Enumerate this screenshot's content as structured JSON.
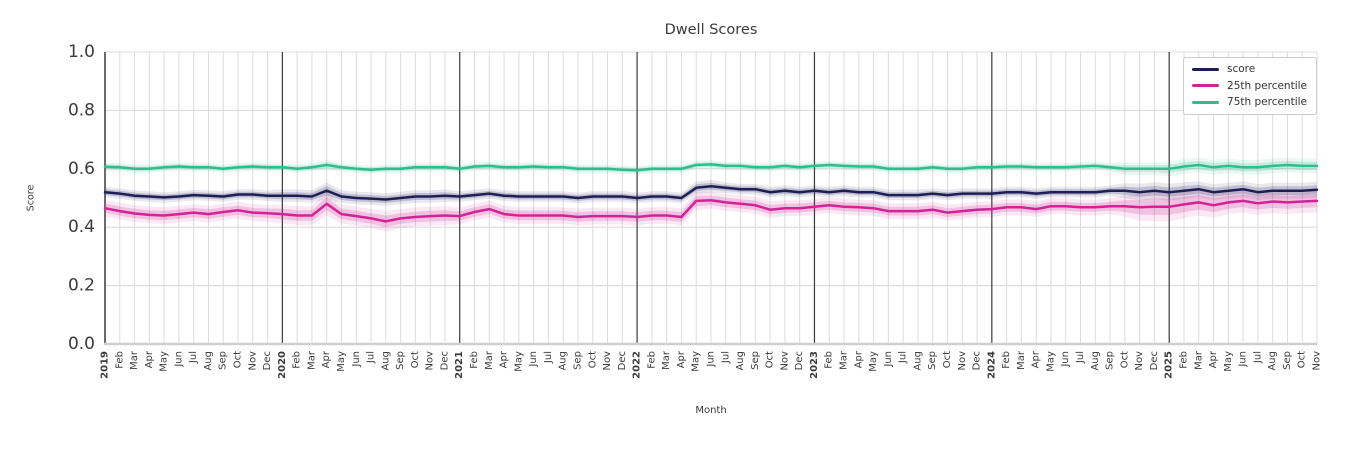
{
  "chart_data": {
    "type": "line",
    "title": "Dwell Scores",
    "xlabel": "Month",
    "ylabel": "Score",
    "ylim": [
      0.0,
      1.0
    ],
    "yticks": [
      0.0,
      0.2,
      0.4,
      0.6,
      0.8,
      1.0
    ],
    "grid": true,
    "legend_position": "upper right",
    "colors": {
      "grid_light": "#dcdcdc",
      "grid_year": "#3a3a3a",
      "axis_spine": "#cfcfcf",
      "tick_text": "#3b3b3b"
    },
    "year_line_indices": [
      12,
      24,
      36,
      48,
      60,
      72
    ],
    "x_labels": [
      "2019",
      "Feb",
      "Mar",
      "Apr",
      "May",
      "Jun",
      "Jul",
      "Aug",
      "Sep",
      "Oct",
      "Nov",
      "Dec",
      "2020",
      "Feb",
      "Mar",
      "Apr",
      "May",
      "Jun",
      "Jul",
      "Aug",
      "Sep",
      "Oct",
      "Nov",
      "Dec",
      "2021",
      "Feb",
      "Mar",
      "Apr",
      "May",
      "Jun",
      "Jul",
      "Aug",
      "Sep",
      "Oct",
      "Nov",
      "Dec",
      "2022",
      "Feb",
      "Mar",
      "Apr",
      "May",
      "Jun",
      "Jul",
      "Aug",
      "Sep",
      "Oct",
      "Nov",
      "Dec",
      "2023",
      "Feb",
      "Mar",
      "Apr",
      "May",
      "Jun",
      "Jul",
      "Aug",
      "Sep",
      "Oct",
      "Nov",
      "Dec",
      "2024",
      "Feb",
      "Mar",
      "Apr",
      "May",
      "Jun",
      "Jul",
      "Aug",
      "Sep",
      "Oct",
      "Nov",
      "Dec",
      "2025",
      "Feb",
      "Mar",
      "Apr",
      "May",
      "Jun",
      "Jul",
      "Aug",
      "Sep",
      "Oct",
      "Nov"
    ],
    "series": [
      {
        "name": "score",
        "color": "#1f1d56",
        "values": [
          0.52,
          0.515,
          0.508,
          0.505,
          0.502,
          0.505,
          0.51,
          0.508,
          0.505,
          0.512,
          0.512,
          0.508,
          0.508,
          0.508,
          0.505,
          0.525,
          0.505,
          0.5,
          0.498,
          0.495,
          0.5,
          0.505,
          0.505,
          0.508,
          0.505,
          0.51,
          0.515,
          0.508,
          0.505,
          0.505,
          0.505,
          0.505,
          0.5,
          0.505,
          0.505,
          0.505,
          0.5,
          0.505,
          0.505,
          0.5,
          0.535,
          0.54,
          0.535,
          0.53,
          0.53,
          0.52,
          0.525,
          0.52,
          0.525,
          0.52,
          0.525,
          0.52,
          0.52,
          0.51,
          0.51,
          0.51,
          0.515,
          0.51,
          0.515,
          0.515,
          0.515,
          0.52,
          0.52,
          0.515,
          0.52,
          0.52,
          0.52,
          0.52,
          0.525,
          0.525,
          0.52,
          0.525,
          0.52,
          0.525,
          0.53,
          0.52,
          0.525,
          0.53,
          0.52,
          0.525,
          0.525,
          0.525,
          0.528
        ],
        "band": [
          0.01,
          0.01,
          0.01,
          0.01,
          0.01,
          0.01,
          0.01,
          0.01,
          0.01,
          0.01,
          0.01,
          0.01,
          0.012,
          0.012,
          0.012,
          0.016,
          0.012,
          0.012,
          0.012,
          0.012,
          0.012,
          0.012,
          0.012,
          0.012,
          0.01,
          0.01,
          0.01,
          0.01,
          0.01,
          0.01,
          0.01,
          0.01,
          0.01,
          0.01,
          0.01,
          0.01,
          0.01,
          0.01,
          0.01,
          0.01,
          0.012,
          0.012,
          0.01,
          0.01,
          0.01,
          0.01,
          0.01,
          0.01,
          0.01,
          0.01,
          0.01,
          0.01,
          0.01,
          0.01,
          0.01,
          0.01,
          0.01,
          0.01,
          0.01,
          0.01,
          0.01,
          0.01,
          0.01,
          0.01,
          0.01,
          0.01,
          0.01,
          0.01,
          0.01,
          0.014,
          0.016,
          0.016,
          0.016,
          0.016,
          0.015,
          0.015,
          0.015,
          0.015,
          0.015,
          0.015,
          0.015,
          0.015,
          0.015
        ]
      },
      {
        "name": "25th percentile",
        "color": "#d22396",
        "values": [
          0.465,
          0.455,
          0.447,
          0.442,
          0.44,
          0.445,
          0.45,
          0.445,
          0.452,
          0.458,
          0.45,
          0.448,
          0.445,
          0.44,
          0.44,
          0.48,
          0.445,
          0.438,
          0.43,
          0.42,
          0.43,
          0.435,
          0.438,
          0.44,
          0.438,
          0.452,
          0.462,
          0.445,
          0.44,
          0.44,
          0.44,
          0.44,
          0.435,
          0.438,
          0.438,
          0.438,
          0.435,
          0.44,
          0.44,
          0.435,
          0.49,
          0.492,
          0.485,
          0.48,
          0.475,
          0.46,
          0.465,
          0.465,
          0.47,
          0.475,
          0.47,
          0.468,
          0.465,
          0.455,
          0.455,
          0.455,
          0.46,
          0.45,
          0.455,
          0.46,
          0.462,
          0.468,
          0.468,
          0.462,
          0.472,
          0.472,
          0.468,
          0.468,
          0.472,
          0.472,
          0.468,
          0.47,
          0.47,
          0.478,
          0.485,
          0.475,
          0.485,
          0.49,
          0.482,
          0.488,
          0.485,
          0.488,
          0.49
        ],
        "band": [
          0.016,
          0.016,
          0.016,
          0.016,
          0.016,
          0.016,
          0.016,
          0.016,
          0.016,
          0.016,
          0.016,
          0.016,
          0.018,
          0.018,
          0.018,
          0.022,
          0.018,
          0.018,
          0.018,
          0.02,
          0.018,
          0.018,
          0.018,
          0.018,
          0.016,
          0.016,
          0.016,
          0.016,
          0.016,
          0.016,
          0.016,
          0.016,
          0.016,
          0.016,
          0.016,
          0.016,
          0.016,
          0.016,
          0.016,
          0.016,
          0.018,
          0.016,
          0.016,
          0.016,
          0.016,
          0.016,
          0.015,
          0.015,
          0.015,
          0.015,
          0.015,
          0.015,
          0.015,
          0.015,
          0.015,
          0.015,
          0.015,
          0.015,
          0.015,
          0.015,
          0.015,
          0.015,
          0.015,
          0.015,
          0.015,
          0.015,
          0.015,
          0.015,
          0.015,
          0.02,
          0.025,
          0.028,
          0.028,
          0.026,
          0.025,
          0.024,
          0.022,
          0.022,
          0.022,
          0.022,
          0.022,
          0.022,
          0.022
        ]
      },
      {
        "name": "75th percentile",
        "color": "#2cbe8e",
        "values": [
          0.607,
          0.605,
          0.6,
          0.6,
          0.605,
          0.608,
          0.605,
          0.605,
          0.6,
          0.605,
          0.608,
          0.605,
          0.605,
          0.6,
          0.605,
          0.613,
          0.605,
          0.6,
          0.597,
          0.6,
          0.6,
          0.605,
          0.605,
          0.605,
          0.6,
          0.608,
          0.61,
          0.605,
          0.605,
          0.608,
          0.605,
          0.605,
          0.6,
          0.6,
          0.6,
          0.597,
          0.595,
          0.6,
          0.6,
          0.6,
          0.613,
          0.615,
          0.61,
          0.61,
          0.605,
          0.605,
          0.61,
          0.605,
          0.61,
          0.613,
          0.61,
          0.608,
          0.608,
          0.6,
          0.6,
          0.6,
          0.605,
          0.6,
          0.6,
          0.605,
          0.605,
          0.608,
          0.608,
          0.605,
          0.605,
          0.605,
          0.608,
          0.61,
          0.605,
          0.6,
          0.6,
          0.6,
          0.6,
          0.608,
          0.613,
          0.605,
          0.61,
          0.605,
          0.605,
          0.61,
          0.613,
          0.61,
          0.61
        ],
        "band": [
          0.008,
          0.008,
          0.008,
          0.008,
          0.008,
          0.008,
          0.008,
          0.008,
          0.008,
          0.008,
          0.008,
          0.008,
          0.008,
          0.008,
          0.008,
          0.01,
          0.008,
          0.008,
          0.008,
          0.008,
          0.008,
          0.008,
          0.008,
          0.008,
          0.008,
          0.008,
          0.008,
          0.008,
          0.008,
          0.008,
          0.008,
          0.008,
          0.008,
          0.008,
          0.008,
          0.008,
          0.008,
          0.008,
          0.008,
          0.008,
          0.008,
          0.008,
          0.008,
          0.008,
          0.008,
          0.008,
          0.008,
          0.008,
          0.008,
          0.008,
          0.008,
          0.008,
          0.008,
          0.008,
          0.008,
          0.008,
          0.008,
          0.008,
          0.008,
          0.008,
          0.008,
          0.008,
          0.008,
          0.008,
          0.008,
          0.008,
          0.008,
          0.008,
          0.008,
          0.012,
          0.012,
          0.012,
          0.014,
          0.014,
          0.014,
          0.014,
          0.014,
          0.014,
          0.014,
          0.014,
          0.014,
          0.014,
          0.014
        ]
      }
    ]
  }
}
